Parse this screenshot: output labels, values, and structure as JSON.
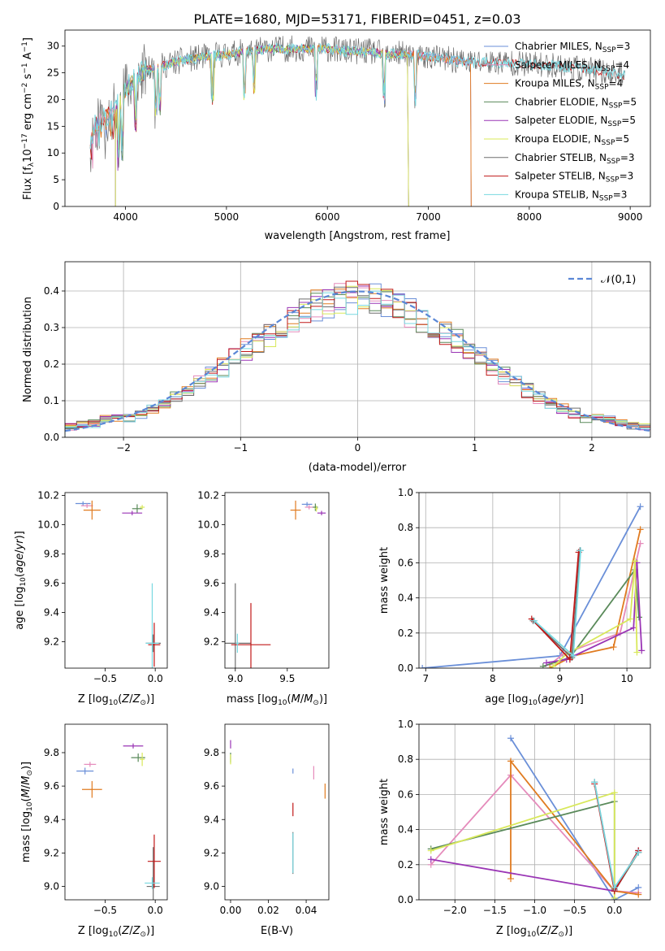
{
  "figure_title": "PLATE=1680, MJD=53171, FIBERID=0451, z=0.03",
  "colors": {
    "Chabrier MILES": "#6a8fd8",
    "Salpeter MILES": "#e58bbb",
    "Kroupa MILES": "#e07b20",
    "Chabrier ELODIE": "#5a8a5a",
    "Salpeter ELODIE": "#9a35b5",
    "Kroupa ELODIE": "#d8e85a",
    "Chabrier STELIB": "#6e6e6e",
    "Salpeter STELIB": "#c01818",
    "Kroupa STELIB": "#78d8e0"
  },
  "legend": [
    "Chabrier MILES, N_SSP=3",
    "Salpeter MILES, N_SSP=4",
    "Kroupa MILES, N_SSP=4",
    "Chabrier ELODIE, N_SSP=5",
    "Salpeter ELODIE, N_SSP=5",
    "Kroupa ELODIE, N_SSP=5",
    "Chabrier STELIB, N_SSP=3",
    "Salpeter STELIB, N_SSP=3",
    "Kroupa STELIB, N_SSP=3"
  ],
  "chart_data": [
    {
      "id": "spectrum",
      "type": "line",
      "title": "PLATE=1680, MJD=53171, FIBERID=0451, z=0.03",
      "xlabel": "wavelength [Angstrom, rest frame]",
      "ylabel": "Flux [f_λ 10^-17 erg cm^-2 s^-1 A^-1]",
      "xlim": [
        3400,
        9200
      ],
      "ylim": [
        0,
        33
      ],
      "xticks": [
        4000,
        5000,
        6000,
        7000,
        8000,
        9000
      ],
      "yticks": [
        0,
        5,
        10,
        15,
        20,
        25,
        30
      ],
      "legend_position": "right",
      "continuum": {
        "x": [
          3650,
          3700,
          3800,
          3900,
          4000,
          4100,
          4200,
          4400,
          4600,
          4800,
          5000,
          5200,
          5400,
          5600,
          5800,
          6000,
          6200,
          6400,
          6600,
          6800,
          7000,
          7200,
          7400,
          7600,
          7800,
          8000,
          8200,
          8400,
          8600,
          8800,
          8950
        ],
        "y": [
          12,
          15,
          17,
          18,
          22,
          24,
          25.5,
          26.5,
          27.5,
          28,
          28.5,
          29,
          29.5,
          29.5,
          29.5,
          29.5,
          29,
          29,
          28.5,
          28.5,
          28,
          27.5,
          27,
          27,
          27,
          26.5,
          26.5,
          26,
          25.5,
          25,
          24.5
        ]
      },
      "coverage": [
        {
          "name": "MILES",
          "x_end": 7420
        },
        {
          "name": "ELODIE",
          "x_start": 3900,
          "x_end": 6800
        },
        {
          "name": "STELIB",
          "x_end": 8950
        }
      ]
    },
    {
      "id": "residuals",
      "type": "histogram",
      "xlabel": "(data-model)/error",
      "ylabel": "Normed distribution",
      "xlim": [
        -2.5,
        2.5
      ],
      "ylim": [
        0,
        0.48
      ],
      "xticks": [
        -2,
        -1,
        0,
        1,
        2
      ],
      "yticks": [
        0.0,
        0.1,
        0.2,
        0.3,
        0.4
      ],
      "grid": true,
      "reference_curve": {
        "label": "𝒩(0,1)",
        "mean": 0,
        "sigma": 1
      },
      "legend_position": "top-right"
    },
    {
      "id": "age_vs_Z",
      "type": "errorbar",
      "xlabel": "Z [log10(Z/Z⊙)]",
      "ylabel": "age [log10(age/yr)]",
      "xlim": [
        -0.9,
        0.12
      ],
      "ylim": [
        9.02,
        10.22
      ],
      "xticks": [
        -0.5,
        0.0
      ],
      "yticks": [
        9.2,
        9.4,
        9.6,
        9.8,
        10.0,
        10.2
      ],
      "points": [
        {
          "model": "Chabrier MILES",
          "x": -0.72,
          "y": 10.145,
          "xerr": 0.15,
          "yerr": 0.03
        },
        {
          "model": "Salpeter MILES",
          "x": -0.68,
          "y": 10.13,
          "xerr": 0.12,
          "yerr": 0.03
        },
        {
          "model": "Kroupa MILES",
          "x": -0.63,
          "y": 10.1,
          "xerr": 0.17,
          "yerr": 0.13
        },
        {
          "model": "Chabrier ELODIE",
          "x": -0.18,
          "y": 10.11,
          "xerr": 0.1,
          "yerr": 0.06
        },
        {
          "model": "Salpeter ELODIE",
          "x": -0.23,
          "y": 10.08,
          "xerr": 0.2,
          "yerr": 0.03
        },
        {
          "model": "Kroupa ELODIE",
          "x": -0.13,
          "y": 10.12,
          "xerr": 0.05,
          "yerr": 0.03
        },
        {
          "model": "Chabrier STELIB",
          "x": -0.02,
          "y": 9.19,
          "xerr": 0.15,
          "yerr": 0.12
        },
        {
          "model": "Salpeter STELIB",
          "x": -0.01,
          "y": 9.18,
          "xerr": 0.12,
          "yerr": 0.3
        },
        {
          "model": "Kroupa STELIB",
          "x": -0.03,
          "y": 9.19,
          "xerr": 0.13,
          "yerr": 0.82
        }
      ]
    },
    {
      "id": "age_vs_mass",
      "type": "errorbar",
      "xlabel": "mass [log10(M/M⊙)]",
      "ylabel": "",
      "xlim": [
        8.9,
        9.9
      ],
      "ylim": [
        9.02,
        10.22
      ],
      "xticks": [
        9.0,
        9.5
      ],
      "yticks": [
        9.2,
        9.4,
        9.6,
        9.8,
        10.0,
        10.2
      ],
      "points": [
        {
          "model": "Chabrier MILES",
          "x": 9.69,
          "y": 10.14,
          "xerr": 0.1,
          "yerr": 0.03
        },
        {
          "model": "Salpeter MILES",
          "x": 9.71,
          "y": 10.12,
          "xerr": 0.08,
          "yerr": 0.03
        },
        {
          "model": "Kroupa MILES",
          "x": 9.58,
          "y": 10.1,
          "xerr": 0.1,
          "yerr": 0.13
        },
        {
          "model": "Chabrier ELODIE",
          "x": 9.77,
          "y": 10.12,
          "xerr": 0.05,
          "yerr": 0.05
        },
        {
          "model": "Salpeter ELODIE",
          "x": 9.83,
          "y": 10.08,
          "xerr": 0.08,
          "yerr": 0.03
        },
        {
          "model": "Kroupa ELODIE",
          "x": 9.78,
          "y": 10.11,
          "xerr": 0.03,
          "yerr": 0.04
        },
        {
          "model": "Chabrier STELIB",
          "x": 9.0,
          "y": 9.19,
          "xerr": 0.3,
          "yerr": 0.82
        },
        {
          "model": "Salpeter STELIB",
          "x": 9.15,
          "y": 9.18,
          "xerr": 0.38,
          "yerr": 0.57
        },
        {
          "model": "Kroupa STELIB",
          "x": 9.02,
          "y": 9.19,
          "xerr": 0.03,
          "yerr": 0.13
        }
      ]
    },
    {
      "id": "mass_weight_vs_age",
      "type": "line",
      "xlabel": "age [log10(age/yr)]",
      "ylabel": "mass weight",
      "xlim": [
        6.9,
        10.35
      ],
      "ylim": [
        0,
        1.0
      ],
      "xticks": [
        7,
        8,
        9,
        10
      ],
      "yticks": [
        0.0,
        0.2,
        0.4,
        0.6,
        0.8,
        1.0
      ],
      "grid": true,
      "series": [
        {
          "model": "Chabrier MILES",
          "x": [
            6.95,
            9.0,
            10.2
          ],
          "y": [
            0.0,
            0.07,
            0.92
          ]
        },
        {
          "model": "Salpeter MILES",
          "x": [
            8.85,
            9.05,
            9.9,
            10.2
          ],
          "y": [
            0.02,
            0.08,
            0.2,
            0.71
          ]
        },
        {
          "model": "Kroupa MILES",
          "x": [
            8.85,
            9.2,
            9.8,
            10.2
          ],
          "y": [
            0.0,
            0.07,
            0.12,
            0.79
          ]
        },
        {
          "model": "Chabrier ELODIE",
          "x": [
            8.75,
            9.15,
            10.12,
            10.18
          ],
          "y": [
            0.01,
            0.06,
            0.56,
            0.29
          ]
        },
        {
          "model": "Salpeter ELODIE",
          "x": [
            8.8,
            9.1,
            10.1,
            10.15,
            10.22
          ],
          "y": [
            0.03,
            0.05,
            0.23,
            0.6,
            0.1
          ]
        },
        {
          "model": "Kroupa ELODIE",
          "x": [
            8.9,
            9.1,
            10.05,
            10.12,
            10.15
          ],
          "y": [
            0.01,
            0.08,
            0.28,
            0.61,
            0.09
          ]
        },
        {
          "model": "Chabrier STELIB",
          "x": [
            8.6,
            9.18,
            9.3
          ],
          "y": [
            0.27,
            0.06,
            0.67
          ]
        },
        {
          "model": "Salpeter STELIB",
          "x": [
            8.58,
            9.15,
            9.28
          ],
          "y": [
            0.28,
            0.05,
            0.66
          ]
        },
        {
          "model": "Kroupa STELIB",
          "x": [
            8.62,
            9.2,
            9.31
          ],
          "y": [
            0.27,
            0.07,
            0.67
          ]
        }
      ]
    },
    {
      "id": "mass_vs_Z",
      "type": "errorbar",
      "xlabel": "Z [log10(Z/Z⊙)]",
      "ylabel": "mass [log10(M/M⊙)]",
      "xlim": [
        -0.9,
        0.12
      ],
      "ylim": [
        8.92,
        9.97
      ],
      "xticks": [
        -0.5,
        0.0
      ],
      "yticks": [
        9.0,
        9.2,
        9.4,
        9.6,
        9.8
      ],
      "points": [
        {
          "model": "Chabrier MILES",
          "x": -0.7,
          "y": 9.69,
          "xerr": 0.17,
          "yerr": 0.04
        },
        {
          "model": "Salpeter MILES",
          "x": -0.65,
          "y": 9.73,
          "xerr": 0.12,
          "yerr": 0.03
        },
        {
          "model": "Kroupa MILES",
          "x": -0.63,
          "y": 9.58,
          "xerr": 0.2,
          "yerr": 0.1
        },
        {
          "model": "Chabrier ELODIE",
          "x": -0.17,
          "y": 9.77,
          "xerr": 0.14,
          "yerr": 0.05
        },
        {
          "model": "Salpeter ELODIE",
          "x": -0.22,
          "y": 9.84,
          "xerr": 0.2,
          "yerr": 0.03
        },
        {
          "model": "Kroupa ELODIE",
          "x": -0.13,
          "y": 9.76,
          "xerr": 0.05,
          "yerr": 0.08
        },
        {
          "model": "Chabrier STELIB",
          "x": -0.02,
          "y": 9.0,
          "xerr": 0.13,
          "yerr": 0.47
        },
        {
          "model": "Salpeter STELIB",
          "x": -0.01,
          "y": 9.15,
          "xerr": 0.13,
          "yerr": 0.32
        },
        {
          "model": "Kroupa STELIB",
          "x": -0.03,
          "y": 9.02,
          "xerr": 0.15,
          "yerr": 0.07
        }
      ]
    },
    {
      "id": "mass_vs_ebv",
      "type": "errorbar",
      "xlabel": "E(B-V)",
      "ylabel": "",
      "xlim": [
        -0.003,
        0.052
      ],
      "ylim": [
        8.92,
        9.97
      ],
      "xticks": [
        0.0,
        0.02,
        0.04
      ],
      "yticks": [
        9.0,
        9.2,
        9.4,
        9.6,
        9.8
      ],
      "points": [
        {
          "model": "Chabrier MILES",
          "x": 0.033,
          "y": 9.69,
          "xerr": 0,
          "yerr": 0.03
        },
        {
          "model": "Salpeter MILES",
          "x": 0.044,
          "y": 9.68,
          "xerr": 0,
          "yerr": 0.08
        },
        {
          "model": "Kroupa MILES",
          "x": 0.05,
          "y": 9.57,
          "xerr": 0,
          "yerr": 0.09
        },
        {
          "model": "Chabrier ELODIE",
          "x": 0.0,
          "y": 9.77,
          "xerr": 0,
          "yerr": 0.06
        },
        {
          "model": "Salpeter ELODIE",
          "x": 0.0,
          "y": 9.85,
          "xerr": 0,
          "yerr": 0.05
        },
        {
          "model": "Kroupa ELODIE",
          "x": 0.0,
          "y": 9.76,
          "xerr": 0,
          "yerr": 0.06
        },
        {
          "model": "Chabrier STELIB",
          "x": 0.033,
          "y": 9.2,
          "xerr": 0,
          "yerr": 0.25
        },
        {
          "model": "Salpeter STELIB",
          "x": 0.033,
          "y": 9.46,
          "xerr": 0,
          "yerr": 0.08
        },
        {
          "model": "Kroupa STELIB",
          "x": 0.033,
          "y": 9.2,
          "xerr": 0,
          "yerr": 0.24
        }
      ]
    },
    {
      "id": "mass_weight_vs_Z",
      "type": "line",
      "xlabel": "Z [log10(Z/Z⊙)]",
      "ylabel": "mass weight",
      "xlim": [
        -2.45,
        0.45
      ],
      "ylim": [
        0,
        1.0
      ],
      "xticks": [
        -2.0,
        -1.5,
        -1.0,
        -0.5,
        0.0
      ],
      "yticks": [
        0.0,
        0.2,
        0.4,
        0.6,
        0.8,
        1.0
      ],
      "grid": true,
      "series": [
        {
          "model": "Chabrier MILES",
          "x": [
            0.3,
            0.0,
            -1.3
          ],
          "y": [
            0.07,
            0.0,
            0.92
          ]
        },
        {
          "model": "Salpeter MILES",
          "x": [
            0.3,
            0.0,
            -1.3,
            -2.3
          ],
          "y": [
            0.04,
            0.05,
            0.71,
            0.2
          ]
        },
        {
          "model": "Kroupa MILES",
          "x": [
            0.3,
            0.0,
            -1.3,
            -1.3
          ],
          "y": [
            0.03,
            0.05,
            0.79,
            0.12
          ]
        },
        {
          "model": "Chabrier ELODIE",
          "x": [
            0.3,
            0.0,
            0.0,
            -2.3
          ],
          "y": [
            0.27,
            0.05,
            0.56,
            0.29
          ]
        },
        {
          "model": "Salpeter ELODIE",
          "x": [
            0.3,
            0.0,
            -2.3
          ],
          "y": [
            0.28,
            0.05,
            0.23
          ]
        },
        {
          "model": "Kroupa ELODIE",
          "x": [
            0.0,
            0.0,
            -2.3
          ],
          "y": [
            0.01,
            0.61,
            0.28
          ]
        },
        {
          "model": "Chabrier STELIB",
          "x": [
            -0.25,
            0.0,
            0.3
          ],
          "y": [
            0.67,
            0.06,
            0.27
          ]
        },
        {
          "model": "Salpeter STELIB",
          "x": [
            -0.25,
            0.0,
            0.3
          ],
          "y": [
            0.66,
            0.05,
            0.28
          ]
        },
        {
          "model": "Kroupa STELIB",
          "x": [
            -0.25,
            0.0,
            0.3
          ],
          "y": [
            0.67,
            0.07,
            0.27
          ]
        }
      ]
    }
  ]
}
